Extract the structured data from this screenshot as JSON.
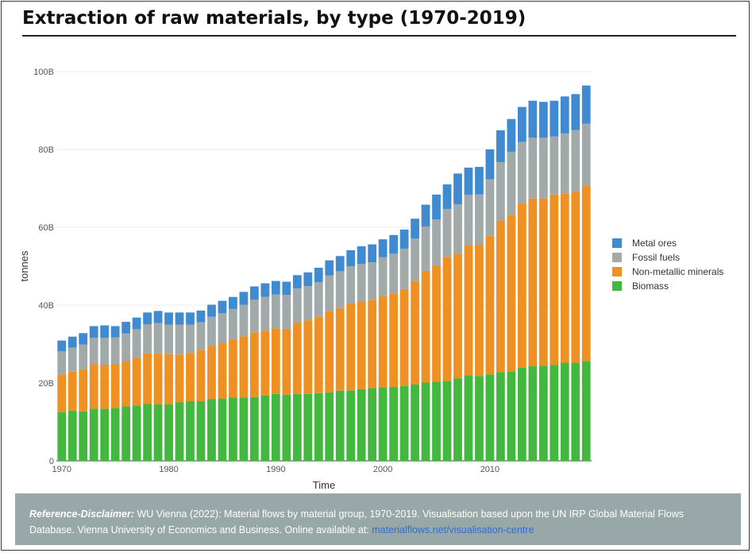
{
  "page": {
    "title": "Extraction of raw materials, by type (1970-2019)"
  },
  "disclaimer": {
    "label": "Reference-Disclaimer:",
    "text": " WU Vienna (2022): Material flows by material group, 1970-2019. Visualisation based upon the UN IRP Global Material Flows Database. Vienna University of Economics and Business. Online available at: ",
    "link": "materialflows.net/visualisation-centre"
  },
  "chart_data": {
    "type": "bar",
    "stacked": true,
    "xlabel": "Time",
    "ylabel": "tonnes",
    "ylim": [
      0,
      100000000000
    ],
    "yticks": [
      0,
      20000000000,
      40000000000,
      60000000000,
      80000000000,
      100000000000
    ],
    "ytick_labels": [
      "0",
      "20B",
      "40B",
      "60B",
      "80B",
      "100B"
    ],
    "xticks": [
      1970,
      1980,
      1990,
      2000,
      2010
    ],
    "xtick_labels": [
      "1970",
      "1980",
      "1990",
      "2000",
      "2010"
    ],
    "legend_position": "right",
    "grid": true,
    "categories": [
      1970,
      1971,
      1972,
      1973,
      1974,
      1975,
      1976,
      1977,
      1978,
      1979,
      1980,
      1981,
      1982,
      1983,
      1984,
      1985,
      1986,
      1987,
      1988,
      1989,
      1990,
      1991,
      1992,
      1993,
      1994,
      1995,
      1996,
      1997,
      1998,
      1999,
      2000,
      2001,
      2002,
      2003,
      2004,
      2005,
      2006,
      2007,
      2008,
      2009,
      2010,
      2011,
      2012,
      2013,
      2014,
      2015,
      2016,
      2017,
      2018,
      2019
    ],
    "series": [
      {
        "name": "Biomass",
        "color": "#43b83f",
        "values": [
          12.5,
          12.9,
          12.7,
          13.4,
          13.4,
          13.6,
          14.0,
          14.2,
          14.6,
          14.5,
          14.5,
          15.0,
          15.3,
          15.3,
          15.9,
          16.0,
          16.3,
          16.3,
          16.4,
          16.8,
          17.2,
          17.0,
          17.2,
          17.2,
          17.4,
          17.6,
          18.0,
          18.1,
          18.4,
          18.7,
          18.9,
          19.0,
          19.2,
          19.6,
          20.1,
          20.3,
          20.5,
          21.2,
          22.0,
          21.8,
          22.2,
          22.8,
          23.0,
          23.9,
          24.3,
          24.4,
          24.6,
          25.2,
          25.2,
          25.6
        ]
      },
      {
        "name": "Non-metallic minerals",
        "color": "#ef9022",
        "values": [
          9.7,
          10.0,
          10.8,
          11.4,
          11.3,
          11.2,
          11.6,
          12.2,
          13.0,
          13.1,
          12.9,
          12.3,
          12.4,
          13.2,
          13.6,
          14.3,
          14.9,
          15.7,
          16.6,
          16.6,
          16.8,
          16.9,
          18.3,
          18.9,
          19.6,
          20.9,
          21.2,
          22.3,
          22.6,
          22.6,
          23.4,
          24.0,
          24.9,
          26.6,
          28.7,
          29.7,
          31.9,
          32.0,
          33.3,
          33.7,
          35.6,
          38.9,
          40.2,
          42.3,
          43.1,
          43.0,
          43.8,
          43.4,
          43.9,
          45.1
        ]
      },
      {
        "name": "Fossil fuels",
        "color": "#a2a9a9",
        "values": [
          5.9,
          6.2,
          6.4,
          6.8,
          6.9,
          6.9,
          7.1,
          7.4,
          7.5,
          7.8,
          7.6,
          7.7,
          7.3,
          7.1,
          7.5,
          7.6,
          7.8,
          8.1,
          8.4,
          8.7,
          8.7,
          8.7,
          8.8,
          8.8,
          8.9,
          9.1,
          9.5,
          9.6,
          9.6,
          9.7,
          10.0,
          10.2,
          10.4,
          10.9,
          11.4,
          12.0,
          12.3,
          12.7,
          13.0,
          12.9,
          14.5,
          15.0,
          16.2,
          15.7,
          15.6,
          15.6,
          14.9,
          15.5,
          15.9,
          15.9
        ]
      },
      {
        "name": "Metal ores",
        "color": "#3f8ad1",
        "values": [
          2.8,
          2.8,
          2.9,
          3.0,
          3.2,
          2.9,
          3.0,
          3.0,
          3.0,
          3.1,
          3.1,
          3.1,
          3.1,
          3.0,
          3.1,
          3.2,
          3.1,
          3.3,
          3.4,
          3.5,
          3.5,
          3.4,
          3.4,
          3.5,
          3.7,
          3.9,
          3.9,
          4.1,
          4.5,
          4.6,
          4.6,
          4.8,
          4.9,
          5.1,
          5.6,
          6.4,
          6.3,
          7.9,
          7.0,
          7.1,
          7.7,
          8.2,
          8.4,
          9.0,
          9.5,
          9.2,
          9.2,
          9.5,
          9.2,
          9.8
        ]
      }
    ],
    "values_unit": "billion tonnes"
  }
}
